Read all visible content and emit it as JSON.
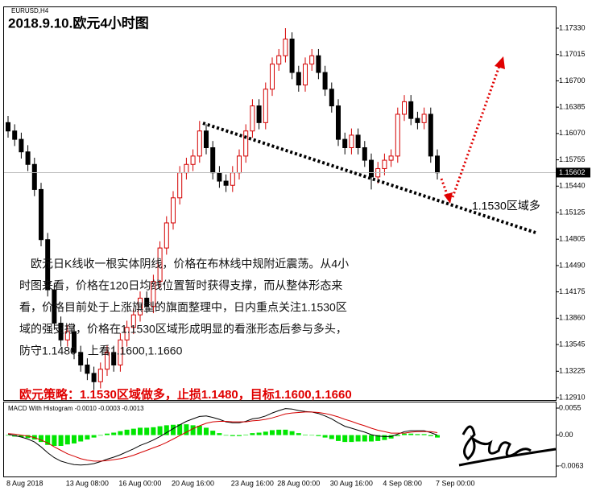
{
  "chart_data": [
    {
      "type": "candlestick",
      "title": "2018.9.10.欧元4小时图",
      "symbol": "EURUSD,H4",
      "categories": [
        "8 Aug 2018",
        null,
        null,
        null,
        null,
        null,
        null,
        null,
        null,
        "13 Aug 08:00",
        null,
        null,
        null,
        null,
        null,
        null,
        null,
        "16 Aug 00:00",
        null,
        null,
        null,
        null,
        null,
        null,
        null,
        "20 Aug 16:00",
        null,
        null,
        null,
        null,
        null,
        null,
        null,
        null,
        "23 Aug 16:00",
        null,
        null,
        null,
        null,
        null,
        null,
        "28 Aug 00:00",
        null,
        null,
        null,
        null,
        null,
        null,
        null,
        "30 Aug 16:00",
        null,
        null,
        null,
        null,
        null,
        null,
        null,
        "4 Sep 08:00",
        null,
        null,
        null,
        null,
        null,
        null,
        null,
        "7 Sep 00:00"
      ],
      "open": [
        1.162,
        1.161,
        1.16,
        1.1585,
        1.157,
        1.154,
        1.148,
        1.142,
        1.138,
        1.136,
        1.137,
        1.1345,
        1.133,
        1.132,
        1.131,
        1.1325,
        1.1345,
        1.133,
        1.136,
        1.1375,
        1.139,
        1.141,
        1.14,
        1.143,
        1.147,
        1.15,
        1.153,
        1.156,
        1.157,
        1.158,
        1.161,
        1.159,
        1.156,
        1.155,
        1.1545,
        1.156,
        1.158,
        1.161,
        1.164,
        1.162,
        1.166,
        1.169,
        1.17,
        1.172,
        1.168,
        1.1665,
        1.169,
        1.17,
        1.168,
        1.166,
        1.164,
        1.16,
        1.159,
        1.1605,
        1.159,
        1.1575,
        1.1555,
        1.1565,
        1.1575,
        1.158,
        1.163,
        1.1645,
        1.1625,
        1.162,
        1.163,
        1.158
      ],
      "high": [
        1.1628,
        1.1618,
        1.1608,
        1.1593,
        1.1578,
        1.1548,
        1.1488,
        1.1428,
        1.1388,
        1.1378,
        1.1378,
        1.1353,
        1.1338,
        1.1328,
        1.1333,
        1.1353,
        1.1353,
        1.1368,
        1.1383,
        1.1398,
        1.1418,
        1.1418,
        1.1438,
        1.1478,
        1.1508,
        1.1538,
        1.1568,
        1.1578,
        1.1588,
        1.1622,
        1.1618,
        1.1598,
        1.1568,
        1.1558,
        1.1568,
        1.1588,
        1.1618,
        1.1648,
        1.1648,
        1.1668,
        1.1698,
        1.1708,
        1.1733,
        1.1728,
        1.1688,
        1.1698,
        1.1708,
        1.1708,
        1.1688,
        1.1668,
        1.1648,
        1.1608,
        1.1613,
        1.1613,
        1.1598,
        1.1583,
        1.1573,
        1.1583,
        1.1588,
        1.1638,
        1.1653,
        1.1653,
        1.1633,
        1.1638,
        1.1638,
        1.1588
      ],
      "low": [
        1.1602,
        1.1592,
        1.1577,
        1.1562,
        1.1532,
        1.1472,
        1.1412,
        1.1372,
        1.1352,
        1.1352,
        1.1337,
        1.1322,
        1.1312,
        1.13,
        1.1302,
        1.1317,
        1.1322,
        1.1322,
        1.1352,
        1.1367,
        1.1382,
        1.1392,
        1.1392,
        1.1422,
        1.1462,
        1.1492,
        1.1522,
        1.1552,
        1.1562,
        1.1572,
        1.1582,
        1.1552,
        1.1542,
        1.1537,
        1.1537,
        1.1552,
        1.1572,
        1.1602,
        1.1612,
        1.1612,
        1.1652,
        1.1682,
        1.1692,
        1.1672,
        1.1657,
        1.1657,
        1.1682,
        1.1672,
        1.1652,
        1.1632,
        1.1592,
        1.1582,
        1.1582,
        1.1582,
        1.1567,
        1.154,
        1.1547,
        1.1557,
        1.1567,
        1.1572,
        1.1622,
        1.1617,
        1.1612,
        1.1612,
        1.1572,
        1.1552
      ],
      "close": [
        1.161,
        1.16,
        1.1585,
        1.157,
        1.154,
        1.148,
        1.142,
        1.138,
        1.136,
        1.137,
        1.1345,
        1.133,
        1.132,
        1.131,
        1.1325,
        1.1345,
        1.133,
        1.136,
        1.1375,
        1.139,
        1.141,
        1.14,
        1.143,
        1.147,
        1.15,
        1.153,
        1.156,
        1.157,
        1.158,
        1.161,
        1.159,
        1.156,
        1.155,
        1.1545,
        1.156,
        1.158,
        1.161,
        1.164,
        1.162,
        1.166,
        1.169,
        1.17,
        1.172,
        1.168,
        1.1665,
        1.169,
        1.17,
        1.168,
        1.166,
        1.164,
        1.16,
        1.159,
        1.1605,
        1.159,
        1.1575,
        1.1555,
        1.1565,
        1.1575,
        1.158,
        1.163,
        1.1645,
        1.1625,
        1.162,
        1.163,
        1.158,
        1.156
      ],
      "up_color": "#d40000",
      "down_color": "#000000",
      "last_price": 1.15602,
      "ylim": [
        1.12881,
        1.1759
      ],
      "yticks": [
        {
          "value": 1.1733,
          "label": "1.17330"
        },
        {
          "value": 1.17015,
          "label": "1.17015"
        },
        {
          "value": 1.167,
          "label": "1.16700"
        },
        {
          "value": 1.16385,
          "label": "1.16385"
        },
        {
          "value": 1.1607,
          "label": "1.16070"
        },
        {
          "value": 1.15755,
          "label": "1.15755"
        },
        {
          "value": 1.1544,
          "label": "1.15440"
        },
        {
          "value": 1.15125,
          "label": "1.15125"
        },
        {
          "value": 1.14805,
          "label": "1.14805"
        },
        {
          "value": 1.1449,
          "label": "1.14490"
        },
        {
          "value": 1.14175,
          "label": "1.14175"
        },
        {
          "value": 1.1386,
          "label": "1.13860"
        },
        {
          "value": 1.13545,
          "label": "1.13545"
        },
        {
          "value": 1.13225,
          "label": "1.13225"
        },
        {
          "value": 1.1291,
          "label": "1.12910"
        }
      ],
      "annotation": "1.1530区域多",
      "commentary": [
        "欧元日K线收一根实体阴线，价格在布林线中规附近震荡。从4小",
        "时图来看，价格在120日均线位置暂时获得支撑，而从整体形态来",
        "看，价格目前处于上涨旗型的旗面整理中，日内重点关注1.1530区",
        "域的强支撑，价格在1.1530区域形成明显的看涨形态后参与多头，",
        "防守1.1480，上看1.1600,1.1660"
      ],
      "strategy": "欧元策略：1.1530区域做多，止损1.1480，目标1.1600,1.1660"
    },
    {
      "type": "macd",
      "title": "MACD With Histogram -0.0010 -0.0003 -0.0013",
      "histogram": {
        "color": "#00e600",
        "values": [
          -0.0001,
          -0.0003,
          -0.0004,
          -0.0006,
          -0.0009,
          -0.0014,
          -0.002,
          -0.0022,
          -0.0022,
          -0.0019,
          -0.0017,
          -0.0013,
          -0.0009,
          -0.0005,
          -0.0001,
          0.0003,
          0.0005,
          0.0008,
          0.0011,
          0.0013,
          0.0015,
          0.0015,
          0.0016,
          0.0018,
          0.002,
          0.0021,
          0.0022,
          0.0022,
          0.002,
          0.0019,
          0.0015,
          0.0009,
          0.0004,
          -0.0001,
          -0.0002,
          -0.0002,
          0.0001,
          0.0004,
          0.0005,
          0.0007,
          0.001,
          0.0011,
          0.0011,
          0.0008,
          0.0004,
          0.0001,
          0.0,
          -0.0002,
          -0.0005,
          -0.0008,
          -0.0012,
          -0.0014,
          -0.0014,
          -0.0013,
          -0.0013,
          -0.0013,
          -0.0012,
          -0.001,
          -0.0007,
          -0.0002,
          0.0003,
          0.0003,
          0.0002,
          0.0002,
          -0.0002,
          -0.0005
        ]
      },
      "macd": {
        "color": "#000000",
        "values": [
          0.0002,
          -0.0001,
          -0.0004,
          -0.0008,
          -0.0014,
          -0.0024,
          -0.0036,
          -0.0046,
          -0.0053,
          -0.0057,
          -0.006,
          -0.0061,
          -0.006,
          -0.0058,
          -0.0054,
          -0.0049,
          -0.0045,
          -0.004,
          -0.0034,
          -0.0028,
          -0.0021,
          -0.0016,
          -0.001,
          -0.0003,
          0.0005,
          0.0013,
          0.0021,
          0.0028,
          0.0033,
          0.0038,
          0.0039,
          0.0036,
          0.0032,
          0.0027,
          0.0025,
          0.0025,
          0.0028,
          0.0033,
          0.0035,
          0.0039,
          0.0045,
          0.005,
          0.0054,
          0.0053,
          0.005,
          0.0048,
          0.0047,
          0.0044,
          0.0039,
          0.0033,
          0.0025,
          0.0018,
          0.0014,
          0.001,
          0.0006,
          0.0001,
          -0.0002,
          -0.0003,
          -0.0003,
          0.0002,
          0.0007,
          0.0009,
          0.0009,
          0.0009,
          0.0005,
          0.0
        ]
      },
      "signal": {
        "color": "#d40000",
        "values": [
          0.0003,
          0.0002,
          0.0,
          -0.0002,
          -0.0005,
          -0.001,
          -0.0016,
          -0.0024,
          -0.0031,
          -0.0038,
          -0.0043,
          -0.0048,
          -0.0051,
          -0.0053,
          -0.0053,
          -0.0052,
          -0.005,
          -0.0048,
          -0.0045,
          -0.0041,
          -0.0036,
          -0.0031,
          -0.0026,
          -0.0021,
          -0.0015,
          -0.0008,
          -0.0001,
          0.0006,
          0.0013,
          0.0019,
          0.0024,
          0.0027,
          0.0028,
          0.0028,
          0.0027,
          0.0027,
          0.0027,
          0.0029,
          0.003,
          0.0032,
          0.0035,
          0.0039,
          0.0043,
          0.0045,
          0.0046,
          0.0047,
          0.0047,
          0.0046,
          0.0044,
          0.0041,
          0.0037,
          0.0032,
          0.0028,
          0.0023,
          0.0019,
          0.0014,
          0.001,
          0.0007,
          0.0004,
          0.0004,
          0.0004,
          0.0006,
          0.0007,
          0.0007,
          0.0007,
          0.0005
        ]
      },
      "ylim": [
        -0.00843,
        0.00665
      ],
      "yticks": [
        0.0055,
        {
          "value": 0,
          "label": "0.00"
        },
        -0.0063
      ]
    }
  ]
}
